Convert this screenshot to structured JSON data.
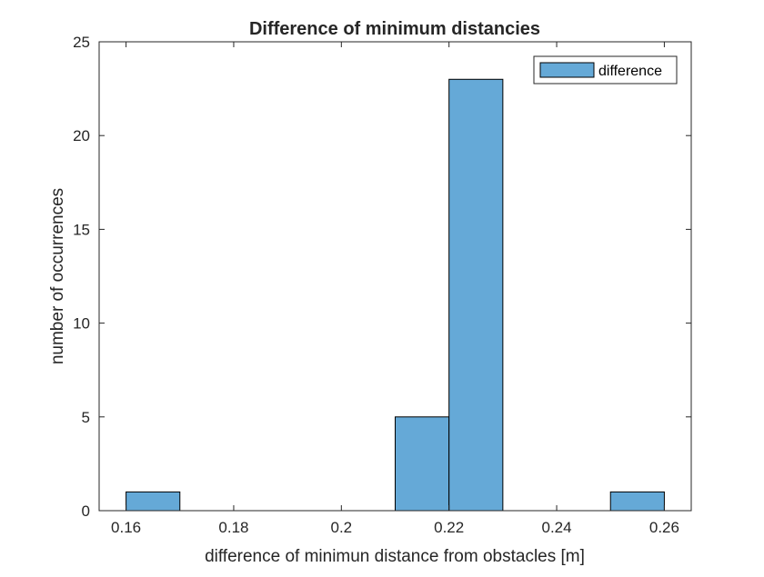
{
  "chart_data": {
    "type": "bar",
    "title": "Difference of minimum distancies",
    "xlabel": "difference of minimun distance from obstacles [m]",
    "ylabel": "number of occurrences",
    "xlim": [
      0.155,
      0.265
    ],
    "ylim": [
      0,
      25
    ],
    "xticks": [
      0.16,
      0.18,
      0.2,
      0.22,
      0.24,
      0.26
    ],
    "xtick_labels": [
      "0.16",
      "0.18",
      "0.2",
      "0.22",
      "0.24",
      "0.26"
    ],
    "yticks": [
      0,
      5,
      10,
      15,
      20,
      25
    ],
    "ytick_labels": [
      "0",
      "5",
      "10",
      "15",
      "20",
      "25"
    ],
    "bins": [
      {
        "start": 0.16,
        "end": 0.17,
        "count": 1
      },
      {
        "start": 0.17,
        "end": 0.18,
        "count": 0
      },
      {
        "start": 0.18,
        "end": 0.19,
        "count": 0
      },
      {
        "start": 0.19,
        "end": 0.2,
        "count": 0
      },
      {
        "start": 0.2,
        "end": 0.21,
        "count": 0
      },
      {
        "start": 0.21,
        "end": 0.22,
        "count": 5
      },
      {
        "start": 0.22,
        "end": 0.23,
        "count": 23
      },
      {
        "start": 0.23,
        "end": 0.24,
        "count": 0
      },
      {
        "start": 0.24,
        "end": 0.25,
        "count": 0
      },
      {
        "start": 0.25,
        "end": 0.26,
        "count": 1
      }
    ],
    "series": [
      {
        "name": "difference",
        "color": "#65a9d7"
      }
    ],
    "legend_position": "top-right",
    "grid": false
  }
}
